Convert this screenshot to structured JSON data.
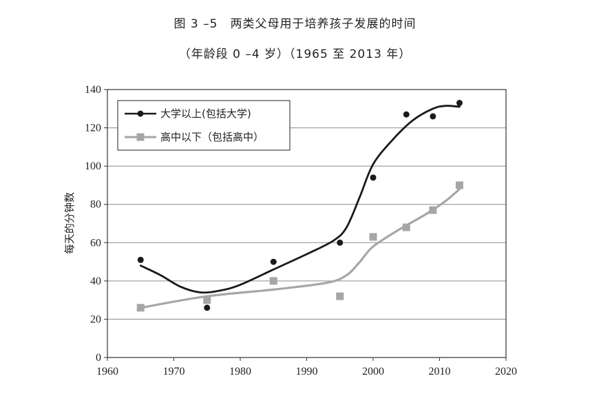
{
  "chart_data": {
    "type": "line",
    "title": "图 3 –5　两类父母用于培养孩子发展的时间",
    "subtitle": "（年龄段 0 –4 岁）（1965 至 2013 年）",
    "xlabel": "",
    "ylabel": "每天的分钟数",
    "xlim": [
      1960,
      2020
    ],
    "ylim": [
      0,
      140
    ],
    "xticks": [
      1960,
      1970,
      1980,
      1990,
      2000,
      2010,
      2020
    ],
    "yticks": [
      0,
      20,
      40,
      60,
      80,
      100,
      120,
      140
    ],
    "grid": "horizontal",
    "legend_position": "top-left",
    "series": [
      {
        "name": "大学以上(包括大学)",
        "color": "#1a1a1a",
        "marker": "circle",
        "x": [
          1965,
          1975,
          1985,
          1995,
          2000,
          2005,
          2009,
          2013
        ],
        "y": [
          51,
          26,
          50,
          60,
          94,
          127,
          126,
          133
        ],
        "trend": [
          [
            1965,
            48
          ],
          [
            1968,
            43
          ],
          [
            1971,
            37
          ],
          [
            1974,
            34
          ],
          [
            1977,
            35
          ],
          [
            1980,
            38
          ],
          [
            1985,
            46
          ],
          [
            1990,
            54
          ],
          [
            1994,
            61
          ],
          [
            1996,
            68
          ],
          [
            1998,
            84
          ],
          [
            2000,
            101
          ],
          [
            2003,
            114
          ],
          [
            2006,
            124
          ],
          [
            2009,
            130
          ],
          [
            2011,
            131.5
          ],
          [
            2013,
            131
          ]
        ]
      },
      {
        "name": "高中以下（包括高中）",
        "color": "#a6a6a6",
        "marker": "square",
        "x": [
          1965,
          1975,
          1985,
          1995,
          2000,
          2005,
          2009,
          2013
        ],
        "y": [
          26,
          30,
          40,
          32,
          63,
          68,
          77,
          90
        ],
        "trend": [
          [
            1965,
            26
          ],
          [
            1975,
            32
          ],
          [
            1985,
            35.5
          ],
          [
            1993,
            39
          ],
          [
            1996,
            43
          ],
          [
            1998,
            50
          ],
          [
            2000,
            58
          ],
          [
            2004,
            67
          ],
          [
            2008,
            75
          ],
          [
            2011,
            82
          ],
          [
            2013,
            88
          ]
        ]
      }
    ]
  }
}
